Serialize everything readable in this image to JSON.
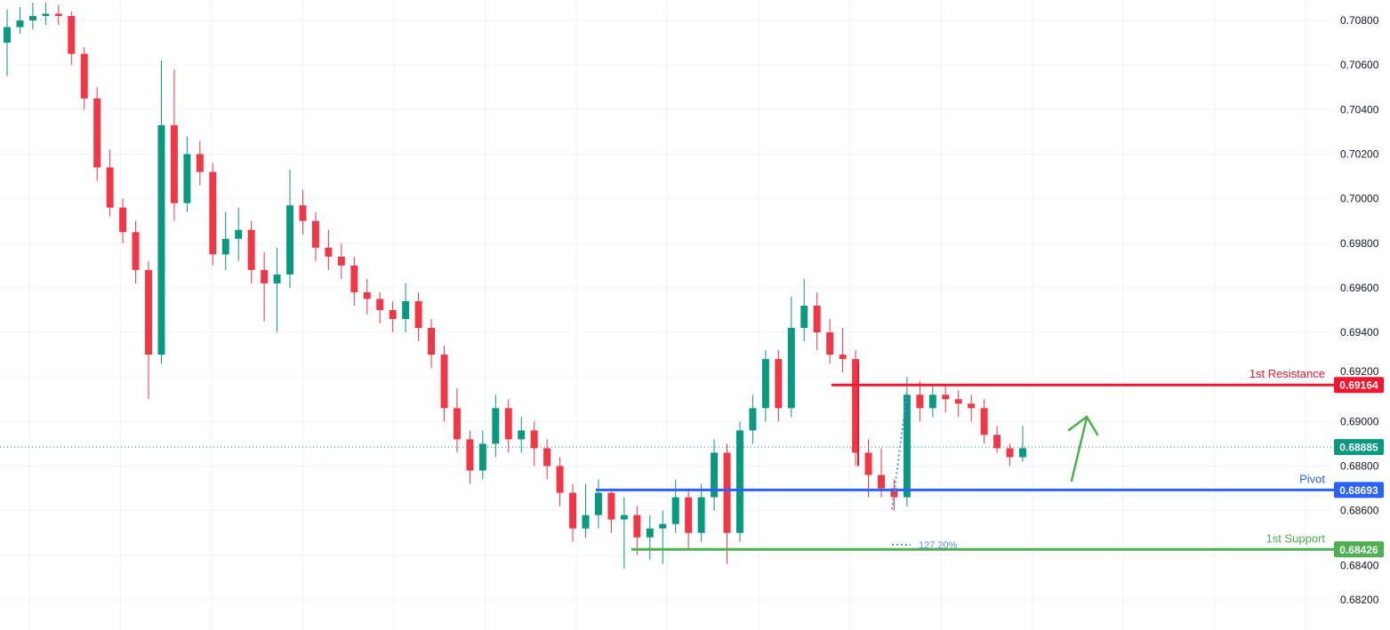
{
  "chart_data": {
    "type": "candlestick",
    "title": "",
    "ylim": [
      0.6813,
      0.7089
    ],
    "y_ticks": [
      "0.70800",
      "0.70600",
      "0.70400",
      "0.70200",
      "0.70000",
      "0.69800",
      "0.69600",
      "0.69400",
      "0.69200",
      "0.69000",
      "0.68800",
      "0.68600",
      "0.68400",
      "0.68200"
    ],
    "grid": true,
    "colors": {
      "up": "#089981",
      "down": "#f23645",
      "resistance": "#f0172f",
      "pivot": "#2962ff",
      "support": "#4caf50",
      "arrow": "#4caf50",
      "fib": "#5b8def"
    },
    "candles": [
      [
        0.707,
        0.7085,
        0.7055,
        0.7077
      ],
      [
        0.7077,
        0.7086,
        0.7074,
        0.708
      ],
      [
        0.708,
        0.7088,
        0.7076,
        0.7082
      ],
      [
        0.7082,
        0.7088,
        0.7078,
        0.7083
      ],
      [
        0.7083,
        0.7087,
        0.7078,
        0.7082
      ],
      [
        0.7082,
        0.7084,
        0.706,
        0.7065
      ],
      [
        0.7065,
        0.7068,
        0.704,
        0.7045
      ],
      [
        0.7045,
        0.705,
        0.7008,
        0.7014
      ],
      [
        0.7014,
        0.7022,
        0.6992,
        0.6996
      ],
      [
        0.6996,
        0.7,
        0.698,
        0.6985
      ],
      [
        0.6985,
        0.699,
        0.6962,
        0.6968
      ],
      [
        0.6968,
        0.6972,
        0.691,
        0.693
      ],
      [
        0.693,
        0.7062,
        0.6926,
        0.7033
      ],
      [
        0.7033,
        0.7058,
        0.699,
        0.6998
      ],
      [
        0.6998,
        0.7028,
        0.6994,
        0.702
      ],
      [
        0.702,
        0.7026,
        0.7006,
        0.7012
      ],
      [
        0.7012,
        0.7016,
        0.697,
        0.6975
      ],
      [
        0.6975,
        0.6994,
        0.6968,
        0.6982
      ],
      [
        0.6982,
        0.6996,
        0.6972,
        0.6986
      ],
      [
        0.6986,
        0.699,
        0.6962,
        0.6968
      ],
      [
        0.6968,
        0.6976,
        0.6945,
        0.6962
      ],
      [
        0.6962,
        0.6978,
        0.694,
        0.6966
      ],
      [
        0.6966,
        0.7013,
        0.696,
        0.6997
      ],
      [
        0.6997,
        0.7004,
        0.6984,
        0.699
      ],
      [
        0.699,
        0.6994,
        0.6972,
        0.6978
      ],
      [
        0.6978,
        0.6986,
        0.6968,
        0.6974
      ],
      [
        0.6974,
        0.698,
        0.6964,
        0.697
      ],
      [
        0.697,
        0.6974,
        0.6952,
        0.6958
      ],
      [
        0.6958,
        0.6964,
        0.6948,
        0.6955
      ],
      [
        0.6955,
        0.6958,
        0.6944,
        0.695
      ],
      [
        0.695,
        0.6954,
        0.694,
        0.6946
      ],
      [
        0.6946,
        0.6962,
        0.694,
        0.6954
      ],
      [
        0.6954,
        0.6958,
        0.6936,
        0.6942
      ],
      [
        0.6942,
        0.6946,
        0.6924,
        0.693
      ],
      [
        0.693,
        0.6934,
        0.69,
        0.6906
      ],
      [
        0.6906,
        0.6915,
        0.6886,
        0.6892
      ],
      [
        0.6892,
        0.6896,
        0.6872,
        0.6878
      ],
      [
        0.6878,
        0.6896,
        0.6874,
        0.689
      ],
      [
        0.689,
        0.6912,
        0.6884,
        0.6906
      ],
      [
        0.6906,
        0.691,
        0.6886,
        0.6892
      ],
      [
        0.6892,
        0.6902,
        0.6886,
        0.6896
      ],
      [
        0.6896,
        0.69,
        0.688,
        0.6888
      ],
      [
        0.6888,
        0.6892,
        0.6874,
        0.688
      ],
      [
        0.688,
        0.6884,
        0.6862,
        0.6868
      ],
      [
        0.6868,
        0.6872,
        0.6846,
        0.6852
      ],
      [
        0.6852,
        0.6872,
        0.6848,
        0.6858
      ],
      [
        0.6858,
        0.6874,
        0.6852,
        0.6868
      ],
      [
        0.6868,
        0.687,
        0.685,
        0.6856
      ],
      [
        0.6856,
        0.6866,
        0.6834,
        0.6858
      ],
      [
        0.6858,
        0.6862,
        0.684,
        0.6848
      ],
      [
        0.6848,
        0.6858,
        0.6838,
        0.6852
      ],
      [
        0.6852,
        0.686,
        0.6836,
        0.6854
      ],
      [
        0.6854,
        0.6874,
        0.685,
        0.6866
      ],
      [
        0.6866,
        0.687,
        0.6842,
        0.685
      ],
      [
        0.685,
        0.6872,
        0.6846,
        0.6866
      ],
      [
        0.6866,
        0.6892,
        0.686,
        0.6886
      ],
      [
        0.6886,
        0.689,
        0.6836,
        0.685
      ],
      [
        0.685,
        0.69,
        0.6846,
        0.6896
      ],
      [
        0.6896,
        0.6912,
        0.689,
        0.6906
      ],
      [
        0.6906,
        0.6932,
        0.69,
        0.6928
      ],
      [
        0.6928,
        0.6932,
        0.69,
        0.6906
      ],
      [
        0.6906,
        0.6956,
        0.6902,
        0.6942
      ],
      [
        0.6942,
        0.6964,
        0.6936,
        0.6952
      ],
      [
        0.6952,
        0.6958,
        0.6932,
        0.694
      ],
      [
        0.694,
        0.6946,
        0.6926,
        0.693
      ],
      [
        0.693,
        0.6942,
        0.6922,
        0.6928
      ],
      [
        0.6928,
        0.6932,
        0.688,
        0.6886
      ],
      [
        0.6886,
        0.6892,
        0.6866,
        0.6876
      ],
      [
        0.6876,
        0.6888,
        0.6866,
        0.687
      ],
      [
        0.687,
        0.6874,
        0.686,
        0.6866
      ],
      [
        0.6866,
        0.692,
        0.6862,
        0.6912
      ],
      [
        0.6912,
        0.6918,
        0.69,
        0.6906
      ],
      [
        0.6906,
        0.6916,
        0.6902,
        0.6912
      ],
      [
        0.6912,
        0.6916,
        0.6904,
        0.691
      ],
      [
        0.691,
        0.6914,
        0.6902,
        0.6908
      ],
      [
        0.6908,
        0.6912,
        0.69,
        0.6906
      ],
      [
        0.6906,
        0.691,
        0.689,
        0.6894
      ],
      [
        0.6894,
        0.6898,
        0.6886,
        0.6888
      ],
      [
        0.6888,
        0.689,
        0.688,
        0.6884
      ],
      [
        0.6884,
        0.6898,
        0.6882,
        0.6888
      ]
    ],
    "current_price": {
      "value": 0.68885,
      "label": "0.68885"
    },
    "levels": [
      {
        "key": "resistance",
        "name": "1st Resistance",
        "value": 0.69164,
        "label": "0.69164"
      },
      {
        "key": "pivot",
        "name": "Pivot",
        "value": 0.68693,
        "label": "0.68693"
      },
      {
        "key": "support",
        "name": "1st Support",
        "value": 0.68426,
        "label": "0.68426"
      }
    ],
    "fib_label": "127.20%",
    "annotations": [
      "upward arrow"
    ]
  }
}
